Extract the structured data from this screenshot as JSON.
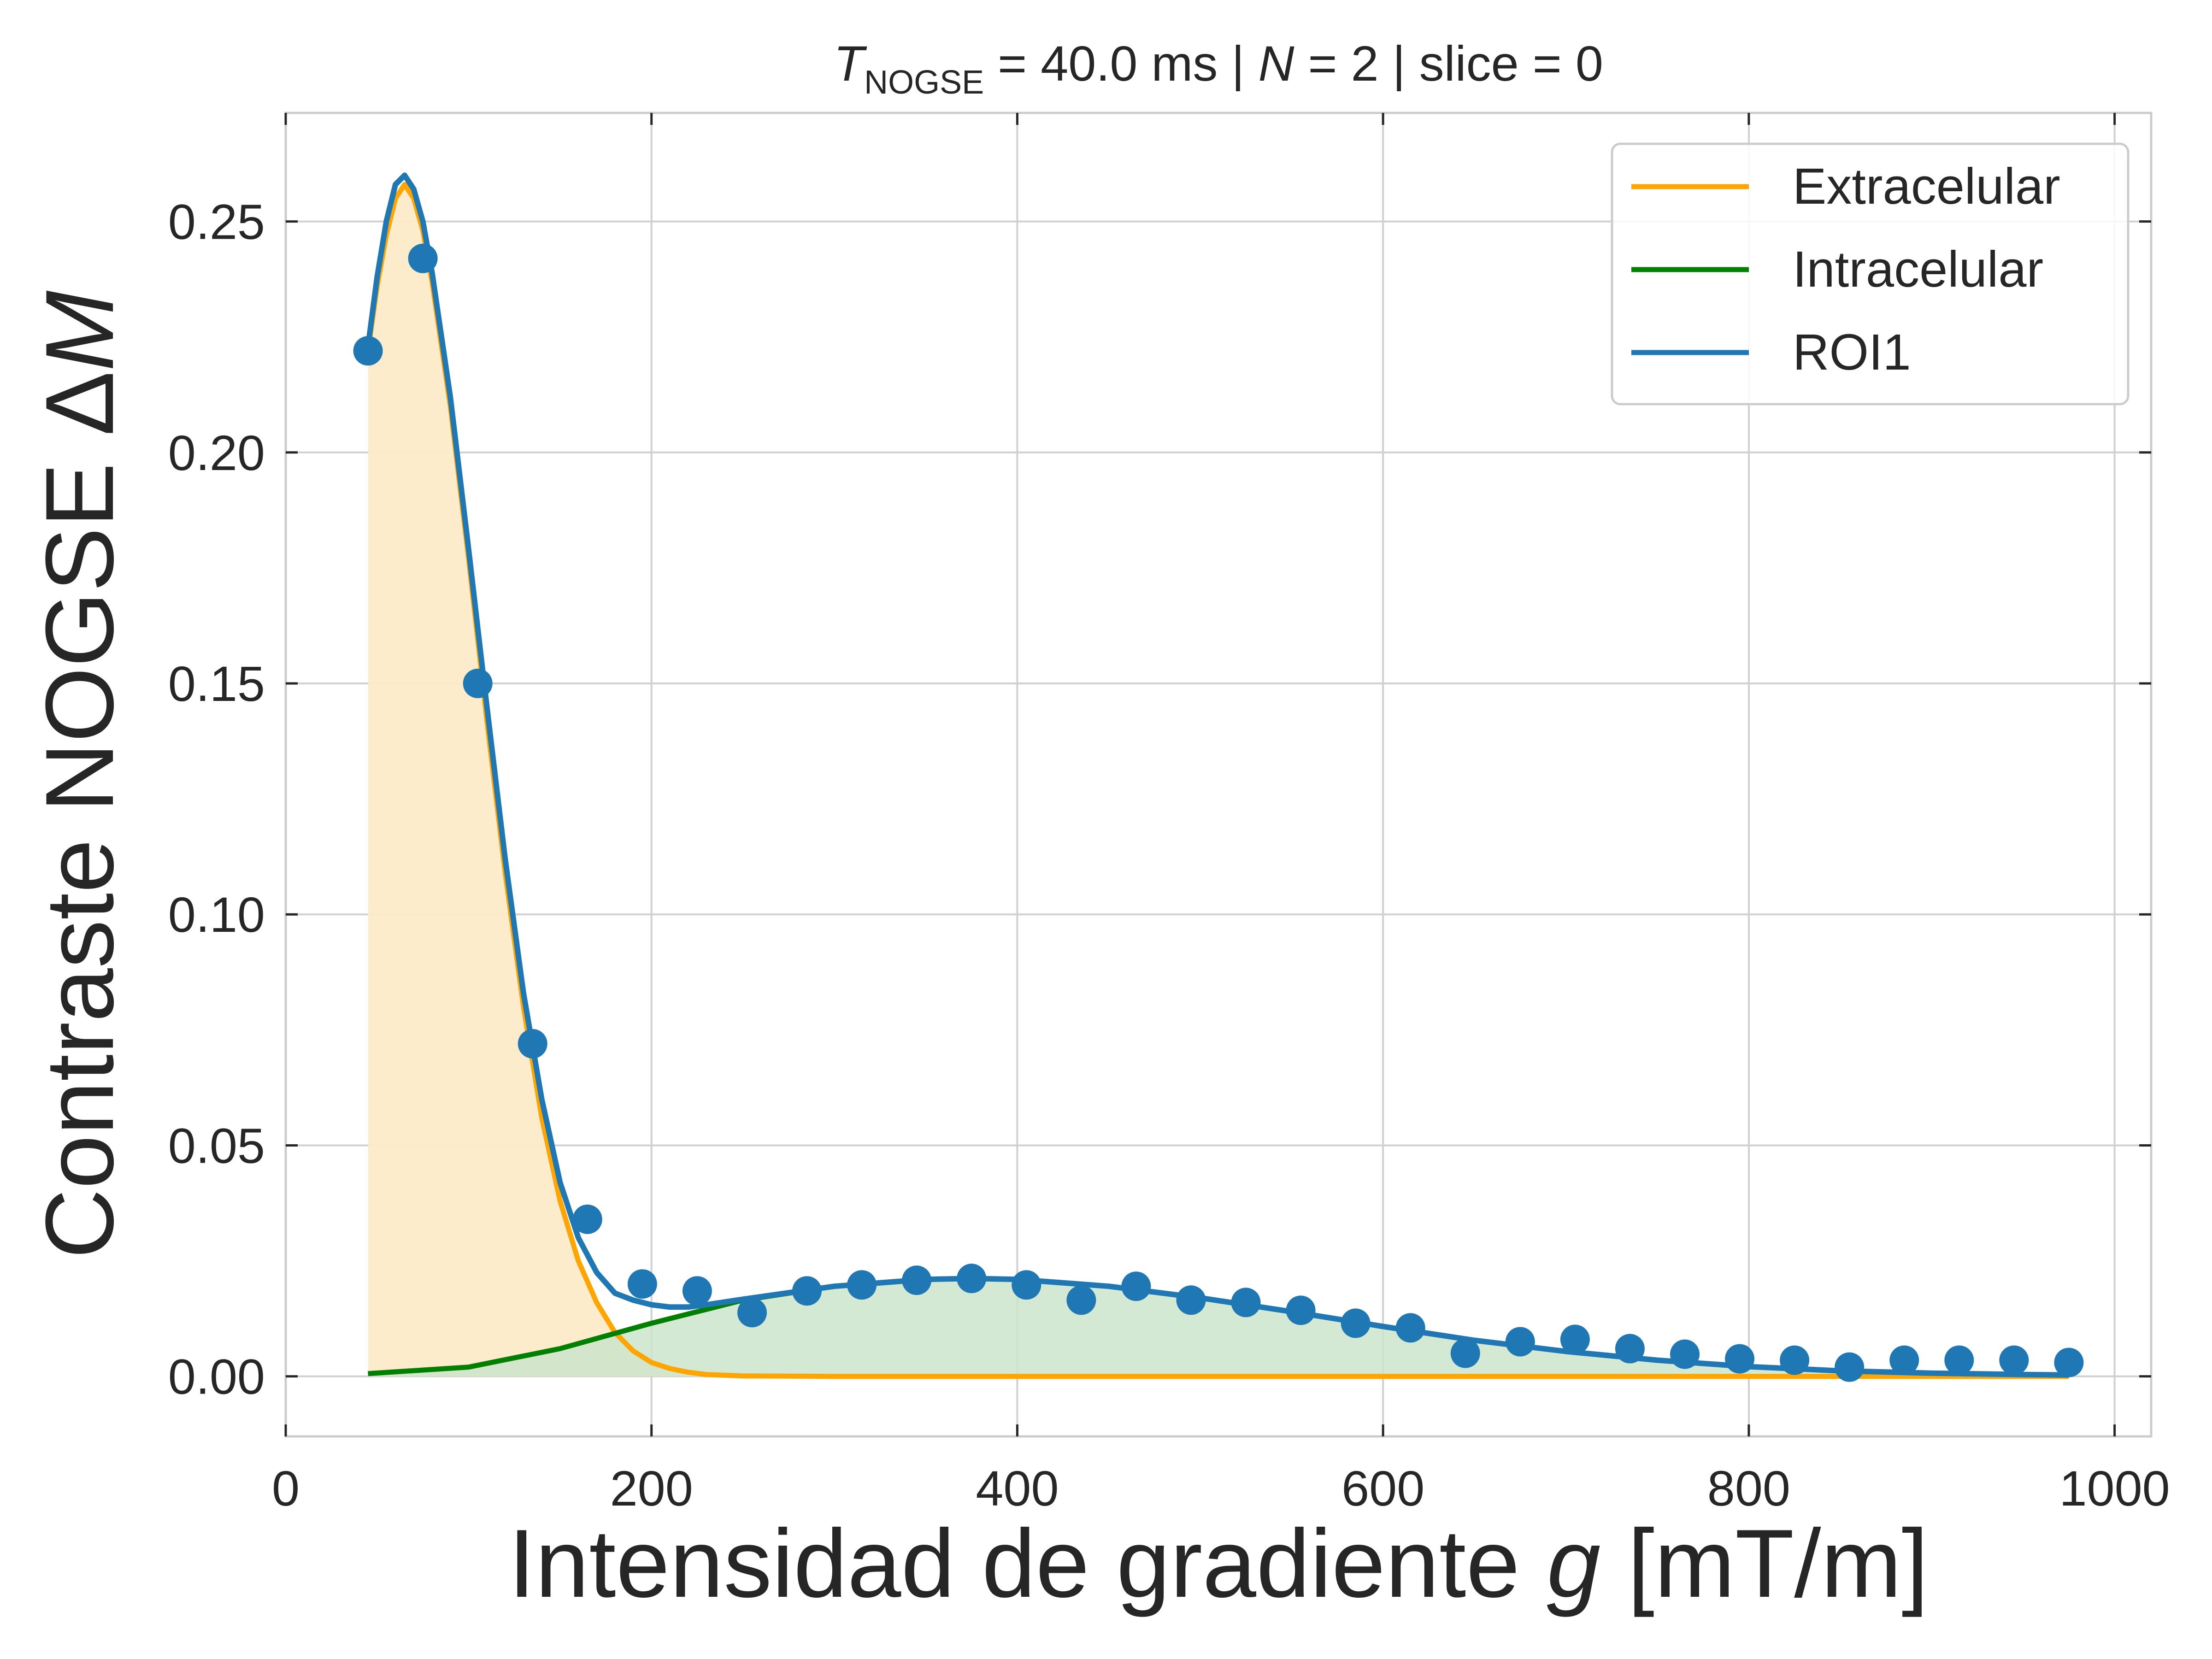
{
  "chart_data": {
    "type": "line",
    "title": {
      "symbol": "T",
      "subscript": "NOGSE",
      "part1": " = 40.0 ms | ",
      "n_symbol": "N",
      "part2": " = 2 | slice = 0"
    },
    "xlabel": {
      "text": "Intensidad de gradiente ",
      "italic": "g",
      "suffix": " [mT/m]"
    },
    "ylabel": {
      "text": "Contraste NOGSE Δ",
      "italic": "M"
    },
    "xlim": [
      0,
      1020
    ],
    "ylim": [
      -0.013,
      0.2735
    ],
    "xticks": [
      0,
      200,
      400,
      600,
      800,
      1000
    ],
    "xtick_labels": [
      "0",
      "200",
      "400",
      "600",
      "800",
      "1000"
    ],
    "yticks": [
      0.0,
      0.05,
      0.1,
      0.15,
      0.2,
      0.25
    ],
    "ytick_labels": [
      "0.00",
      "0.05",
      "0.10",
      "0.15",
      "0.20",
      "0.25"
    ],
    "grid": true,
    "legend_position": "top-right",
    "colors": {
      "extracelular": "#FFA500",
      "intracelular": "#008000",
      "roi": "#1F77B4",
      "extra_fill": "#FDEBC8",
      "intra_fill": "#CBE5CB",
      "grid": "#D0D0D0",
      "spine": "#CCCCCC"
    },
    "series": [
      {
        "name": "Extracelular",
        "kind": "line",
        "x": [
          45,
          50,
          55,
          60,
          65,
          70,
          75,
          80,
          90,
          100,
          110,
          120,
          130,
          140,
          150,
          160,
          170,
          180,
          190,
          200,
          210,
          220,
          230,
          250,
          300,
          400,
          500,
          600,
          700,
          800,
          900,
          975
        ],
        "y": [
          0.222,
          0.236,
          0.247,
          0.255,
          0.258,
          0.255,
          0.248,
          0.237,
          0.21,
          0.177,
          0.142,
          0.109,
          0.08,
          0.056,
          0.038,
          0.025,
          0.016,
          0.0095,
          0.0055,
          0.003,
          0.0017,
          0.0009,
          0.0004,
          0.0001,
          0.0,
          0.0,
          0.0,
          0.0,
          0.0,
          0.0,
          0.0,
          0.0
        ]
      },
      {
        "name": "Intracelular",
        "kind": "line",
        "x": [
          45,
          100,
          150,
          200,
          250,
          300,
          350,
          375,
          400,
          450,
          500,
          550,
          600,
          650,
          700,
          750,
          800,
          850,
          900,
          950,
          975
        ],
        "y": [
          0.0006,
          0.002,
          0.006,
          0.0115,
          0.0165,
          0.0195,
          0.021,
          0.0212,
          0.021,
          0.0195,
          0.017,
          0.014,
          0.0108,
          0.0078,
          0.0054,
          0.0035,
          0.0021,
          0.0012,
          0.0007,
          0.0004,
          0.0003
        ]
      },
      {
        "name": "ROI1",
        "kind": "line",
        "x": [
          45,
          50,
          55,
          60,
          65,
          70,
          75,
          80,
          90,
          100,
          110,
          120,
          130,
          140,
          150,
          160,
          170,
          180,
          190,
          200,
          210,
          220,
          230,
          250,
          300,
          350,
          375,
          400,
          450,
          500,
          550,
          600,
          650,
          700,
          750,
          800,
          850,
          900,
          950,
          975
        ],
        "y": [
          0.223,
          0.238,
          0.25,
          0.258,
          0.26,
          0.257,
          0.25,
          0.239,
          0.212,
          0.179,
          0.145,
          0.112,
          0.083,
          0.06,
          0.042,
          0.03,
          0.0225,
          0.018,
          0.0165,
          0.0155,
          0.015,
          0.015,
          0.0155,
          0.0167,
          0.0195,
          0.021,
          0.0212,
          0.021,
          0.0195,
          0.017,
          0.014,
          0.0108,
          0.0078,
          0.0054,
          0.0035,
          0.0021,
          0.0012,
          0.0007,
          0.0004,
          0.0003
        ]
      },
      {
        "name": "ROI1 data",
        "kind": "scatter",
        "x": [
          45,
          75,
          105,
          135,
          165,
          195,
          225,
          255,
          285,
          315,
          345,
          375,
          405,
          435,
          465,
          495,
          525,
          555,
          585,
          615,
          645,
          675,
          705,
          735,
          765,
          795,
          825,
          855,
          885,
          915,
          945,
          975
        ],
        "y": [
          0.222,
          0.242,
          0.15,
          0.072,
          0.034,
          0.02,
          0.0185,
          0.0138,
          0.0185,
          0.0198,
          0.0208,
          0.0212,
          0.0198,
          0.0165,
          0.0195,
          0.0165,
          0.016,
          0.0143,
          0.0115,
          0.0105,
          0.005,
          0.0075,
          0.008,
          0.006,
          0.0048,
          0.0038,
          0.0035,
          0.002,
          0.0035,
          0.0035,
          0.0035,
          0.003
        ]
      }
    ]
  },
  "legend": {
    "items": [
      {
        "label": "Extracelular",
        "color": "#FFA500"
      },
      {
        "label": "Intracelular",
        "color": "#008000"
      },
      {
        "label": "ROI1",
        "color": "#1F77B4"
      }
    ]
  }
}
